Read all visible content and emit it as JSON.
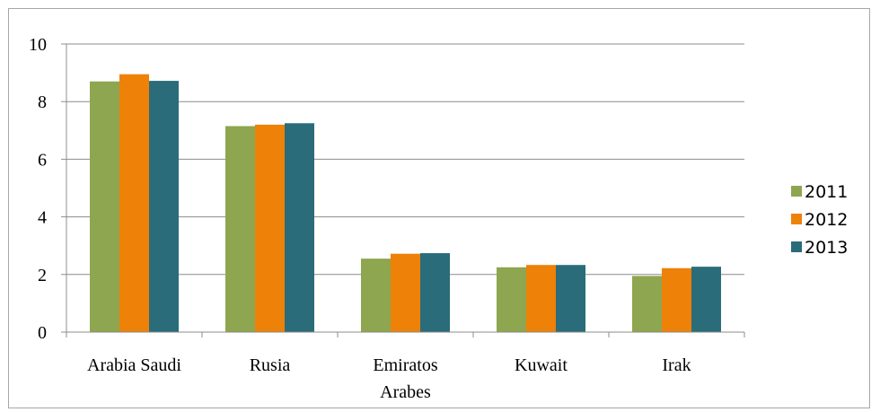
{
  "chart_data": {
    "type": "bar",
    "title": "",
    "xlabel": "",
    "ylabel": "",
    "ylim": [
      0,
      10
    ],
    "yticks": [
      0,
      2,
      4,
      6,
      8,
      10
    ],
    "grid": true,
    "legend_position": "right",
    "categories": [
      [
        "Arabia Saudi"
      ],
      [
        "Rusia"
      ],
      [
        "Emiratos",
        "Arabes"
      ],
      [
        "Kuwait"
      ],
      [
        "Irak"
      ]
    ],
    "series": [
      {
        "name": "2011",
        "color": "#8ea64f",
        "values": [
          8.7,
          7.15,
          2.55,
          2.25,
          1.95
        ]
      },
      {
        "name": "2012",
        "color": "#ee8108",
        "values": [
          8.95,
          7.2,
          2.72,
          2.33,
          2.22
        ]
      },
      {
        "name": "2013",
        "color": "#2a6c7a",
        "values": [
          8.72,
          7.25,
          2.74,
          2.33,
          2.27
        ]
      }
    ]
  }
}
